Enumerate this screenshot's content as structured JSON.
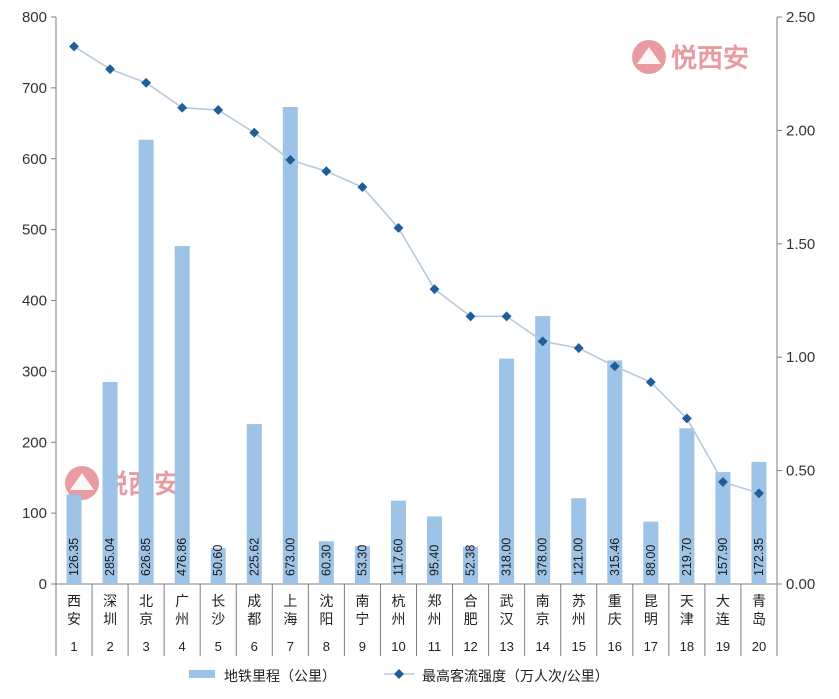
{
  "chart_data": {
    "type": "bar",
    "categories": [
      "西安",
      "深圳",
      "北京",
      "广州",
      "长沙",
      "成都",
      "上海",
      "沈阳",
      "南宁",
      "杭州",
      "郑州",
      "合肥",
      "武汉",
      "南京",
      "苏州",
      "重庆",
      "昆明",
      "天津",
      "大连",
      "青岛"
    ],
    "ranks": [
      "1",
      "2",
      "3",
      "4",
      "5",
      "6",
      "7",
      "8",
      "9",
      "10",
      "11",
      "12",
      "13",
      "14",
      "15",
      "16",
      "17",
      "18",
      "19",
      "20"
    ],
    "series": [
      {
        "name": "地铁里程（公里）",
        "type": "bar",
        "axis": "left",
        "values": [
          126.35,
          285.04,
          626.85,
          476.86,
          50.6,
          225.62,
          673.0,
          60.3,
          53.3,
          117.6,
          95.4,
          52.38,
          318.0,
          378.0,
          121.0,
          315.46,
          88.0,
          219.7,
          157.9,
          172.35
        ],
        "labels": [
          "126.35",
          "285.04",
          "626.85",
          "476.86",
          "50.60",
          "225.62",
          "673.00",
          "60.30",
          "53.30",
          "117.60",
          "95.40",
          "52.38",
          "318.00",
          "378.00",
          "121.00",
          "315.46",
          "88.00",
          "219.70",
          "157.90",
          "172.35"
        ],
        "color": "#9dc3e6"
      },
      {
        "name": "最高客流强度（万人次/公里）",
        "type": "line",
        "axis": "right",
        "values": [
          2.37,
          2.27,
          2.21,
          2.1,
          2.09,
          1.99,
          1.87,
          1.82,
          1.75,
          1.57,
          1.3,
          1.18,
          1.18,
          1.07,
          1.04,
          0.96,
          0.89,
          0.73,
          0.45,
          0.4
        ],
        "color": "#1f5f99",
        "line_color": "#b7c9dc"
      }
    ],
    "y_left": {
      "range": [
        0,
        800
      ],
      "ticks": [
        "0",
        "100",
        "200",
        "300",
        "400",
        "500",
        "600",
        "700",
        "800"
      ]
    },
    "y_right": {
      "range": [
        0,
        2.5
      ],
      "ticks": [
        "0.00",
        "0.50",
        "1.00",
        "1.50",
        "2.00",
        "2.50"
      ]
    },
    "grid": false,
    "legend_position": "bottom"
  },
  "watermark": {
    "text": "悦西安",
    "color": "#e07a82"
  }
}
